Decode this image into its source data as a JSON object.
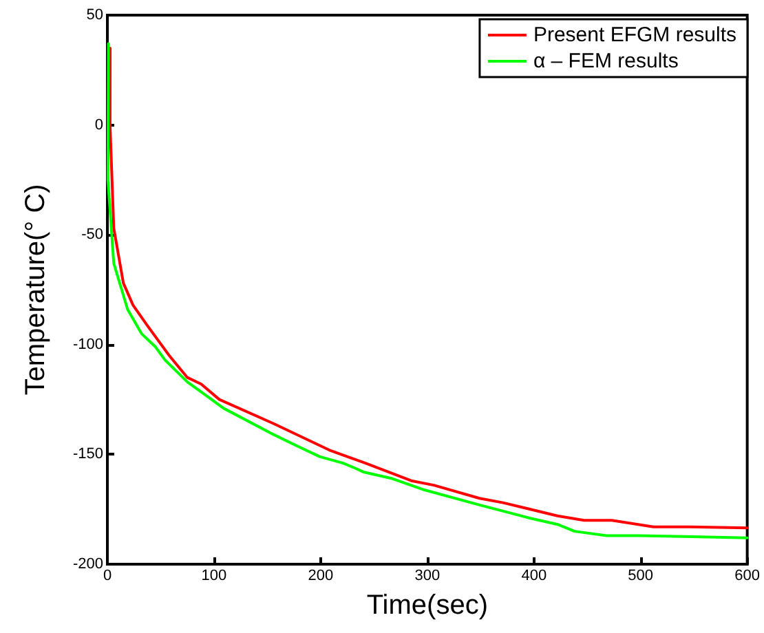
{
  "chart_data": {
    "type": "line",
    "xlabel": "Time(sec)",
    "ylabel": "Temperature(° C)",
    "xlim": [
      0,
      600
    ],
    "ylim": [
      -200,
      50
    ],
    "xticks": [
      0,
      100,
      200,
      300,
      400,
      500,
      600
    ],
    "yticks": [
      -200,
      -150,
      -100,
      -50,
      0,
      50
    ],
    "grid": false,
    "legend": "top right",
    "marker": "none",
    "line_style": "solid",
    "series": [
      {
        "name": "Present EFGM results",
        "color": "#ff0000",
        "x": [
          2.6,
          2.5,
          6,
          15,
          24,
          37,
          58,
          75,
          88,
          105,
          156,
          208,
          242,
          285,
          306,
          349,
          371,
          422,
          447,
          473,
          512,
          545,
          600
        ],
        "values": [
          35,
          0,
          -47,
          -72,
          -82,
          -91,
          -105,
          -115,
          -118,
          -125,
          -136,
          -148,
          -154,
          -162,
          -164,
          -170,
          -172,
          -178,
          -180,
          -180,
          -183,
          -183,
          -183.5
        ]
      },
      {
        "name": "α – FEM results",
        "color": "#00ff00",
        "x": [
          1,
          0.5,
          6,
          19,
          32,
          45,
          54,
          75,
          92,
          109,
          156,
          173,
          199,
          221,
          231,
          240,
          267,
          296,
          349,
          396,
          423,
          438,
          468,
          498,
          600
        ],
        "values": [
          37,
          -25,
          -63,
          -84,
          -95,
          -101,
          -107,
          -117,
          -123,
          -129,
          -141,
          -145,
          -151,
          -154,
          -156,
          -158,
          -161,
          -166,
          -173,
          -179,
          -182,
          -185,
          -187,
          -187,
          -188
        ]
      }
    ]
  }
}
